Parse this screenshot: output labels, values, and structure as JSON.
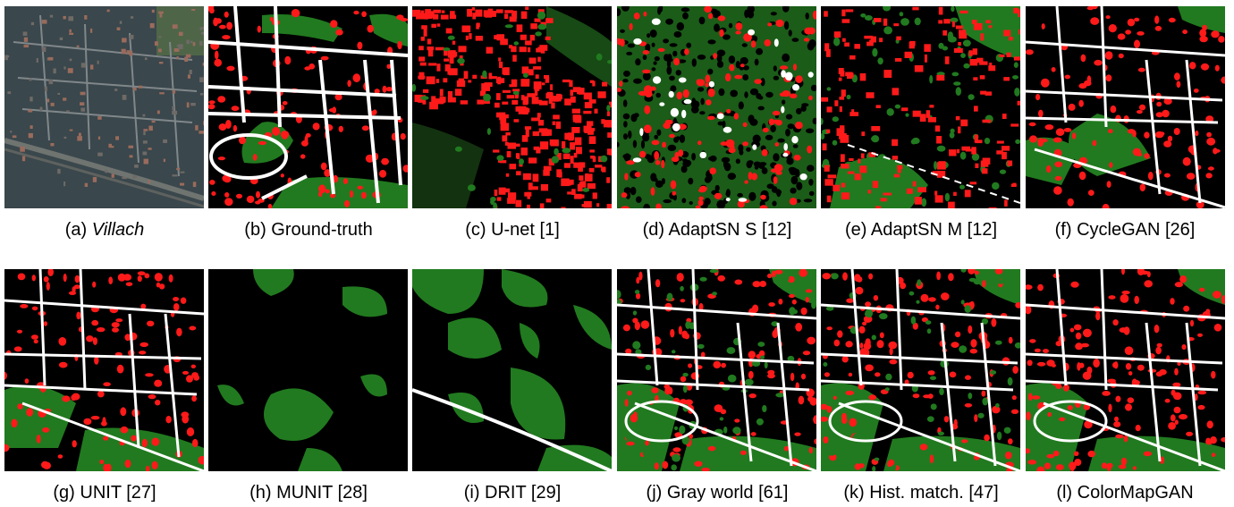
{
  "figure": {
    "row1": [
      {
        "key": "a",
        "label": "(a) ",
        "name": "Villach",
        "italic": true
      },
      {
        "key": "b",
        "label": "(b) Ground-truth"
      },
      {
        "key": "c",
        "label": "(c) U-net [1]"
      },
      {
        "key": "d",
        "label": "(d) AdaptSN S [12]"
      },
      {
        "key": "e",
        "label": "(e) AdaptSN M [12]"
      },
      {
        "key": "f",
        "label": "(f) CycleGAN [26]"
      }
    ],
    "row2": [
      {
        "key": "g",
        "label": "(g) UNIT [27]"
      },
      {
        "key": "h",
        "label": "(h) MUNIT [28]"
      },
      {
        "key": "i",
        "label": "(i) DRIT [29]"
      },
      {
        "key": "j",
        "label": "(j) Gray world [61]"
      },
      {
        "key": "k",
        "label": "(k) Hist. match. [47]"
      },
      {
        "key": "l",
        "label": "(l) ColorMapGAN"
      }
    ]
  },
  "colors": {
    "building": "#ff1a1a",
    "vegetation": "#217a1f",
    "road": "#ffffff",
    "background": "#000000",
    "aerial": "#3c4a4f"
  }
}
